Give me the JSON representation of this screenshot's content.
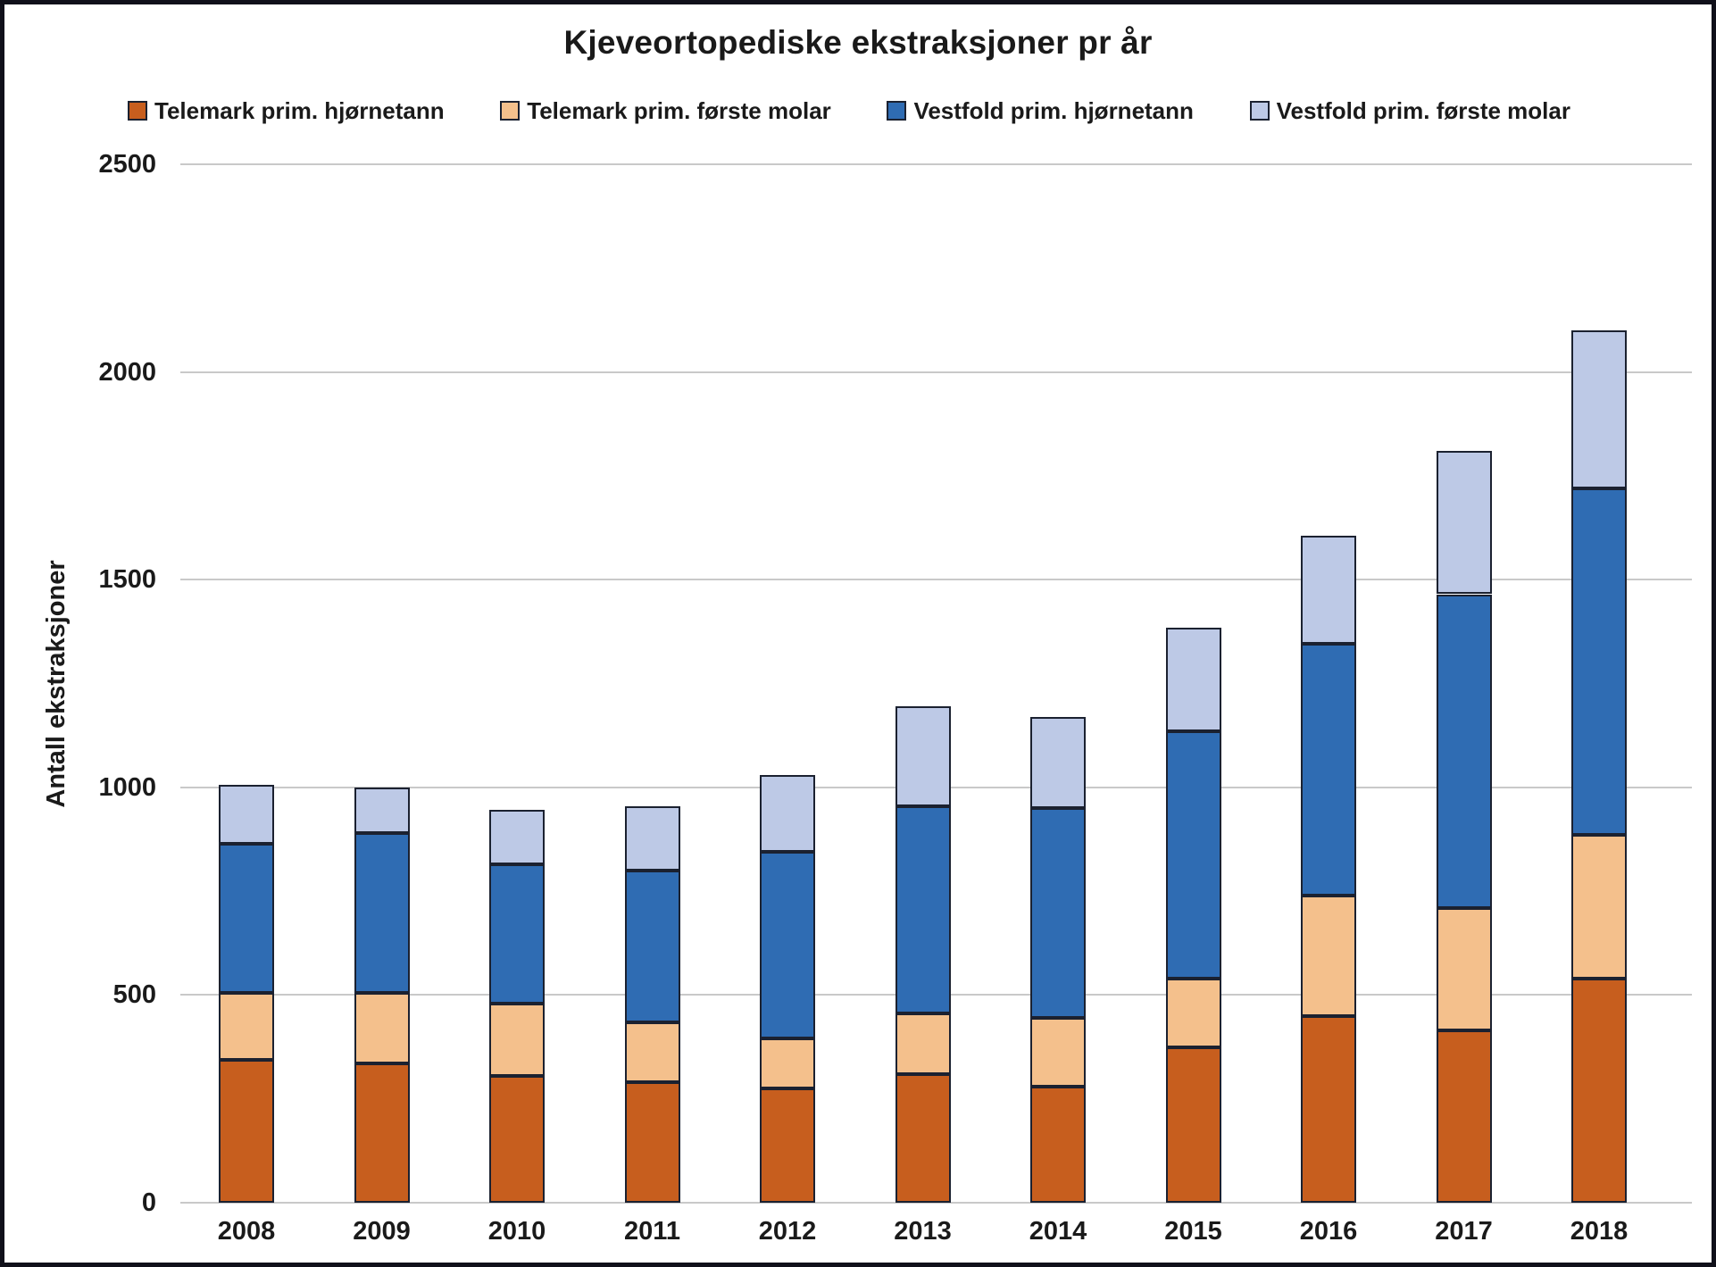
{
  "title": "Kjeveortopediske ekstraksjoner pr år",
  "y_axis_title": "Antall ekstraksjoner",
  "colors": {
    "bar_border": "#1B2130",
    "gridline": "#C9C9C9",
    "text": "#1A1A1A",
    "frame": "#10101A",
    "background": "#FFFFFF"
  },
  "chart_data": {
    "type": "bar",
    "stacked": true,
    "title": "Kjeveortopediske ekstraksjoner pr år",
    "xlabel": "",
    "ylabel": "Antall ekstraksjoner",
    "ylim": [
      0,
      2500
    ],
    "yticks": [
      0,
      500,
      1000,
      1500,
      2000,
      2500
    ],
    "grid": true,
    "legend_position": "top",
    "categories": [
      "2008",
      "2009",
      "2010",
      "2011",
      "2012",
      "2013",
      "2014",
      "2015",
      "2016",
      "2017",
      "2018"
    ],
    "series": [
      {
        "name": "Telemark prim. hjørnetann",
        "color": "#C75E1E",
        "values": [
          345,
          335,
          305,
          290,
          275,
          310,
          280,
          375,
          450,
          415,
          540
        ]
      },
      {
        "name": "Telemark prim. første molar",
        "color": "#F4C08C",
        "values": [
          160,
          170,
          175,
          145,
          120,
          145,
          165,
          165,
          290,
          295,
          345
        ]
      },
      {
        "name": "Vestfold prim. hjørnetann",
        "color": "#2F6CB3",
        "values": [
          360,
          385,
          335,
          365,
          450,
          500,
          505,
          595,
          605,
          755,
          835
        ]
      },
      {
        "name": "Vestfold prim. første molar",
        "color": "#BDC9E6",
        "values": [
          140,
          110,
          130,
          155,
          185,
          240,
          220,
          250,
          260,
          345,
          380
        ]
      }
    ]
  }
}
